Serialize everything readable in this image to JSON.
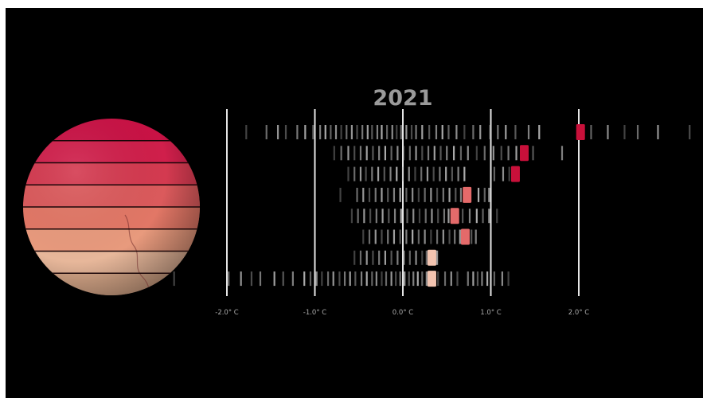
{
  "chart_data": {
    "type": "scatter",
    "title": "2021",
    "x_tick_labels": [
      "-2.0° C",
      "-1.0° C",
      "0.0° C",
      "1.0° C",
      "2.0° C"
    ],
    "x_ticks": [
      -2.0,
      -1.0,
      0.0,
      1.0,
      2.0
    ],
    "xlim": [
      -2.2,
      3.3
    ],
    "grid": true,
    "rows": 8,
    "colors": {
      "background": "#000000",
      "gridline": "#e6e6e6",
      "history_mark": "#bdbdbd",
      "highlight_hot": "#c8103a",
      "highlight_warm": "#e46a6a",
      "highlight_mild": "#f3c4b0",
      "globe_bands": [
        "#c91245",
        "#d01f4b",
        "#d43a50",
        "#db5a5c",
        "#e27766",
        "#e89a7d",
        "#e7b79a",
        "#d8a889"
      ]
    },
    "series": [
      {
        "highlight": 2.02,
        "history": [
          -1.78,
          -1.55,
          -1.42,
          -1.33,
          -1.2,
          -1.11,
          -1.02,
          -0.94,
          -0.88,
          -0.82,
          -0.76,
          -0.7,
          -0.64,
          -0.58,
          -0.52,
          -0.46,
          -0.4,
          -0.35,
          -0.29,
          -0.24,
          -0.18,
          -0.12,
          -0.07,
          -0.02,
          0.04,
          0.1,
          0.15,
          0.22,
          0.3,
          0.38,
          0.45,
          0.52,
          0.61,
          0.7,
          0.8,
          0.88,
          0.99,
          1.08,
          1.17,
          1.28,
          1.43,
          1.55,
          2.14,
          2.33,
          2.52,
          2.67,
          2.9,
          3.26
        ]
      },
      {
        "highlight": 1.38,
        "history": [
          -0.78,
          -0.7,
          -0.62,
          -0.55,
          -0.48,
          -0.41,
          -0.34,
          -0.27,
          -0.2,
          -0.13,
          -0.06,
          0.01,
          0.08,
          0.15,
          0.22,
          0.29,
          0.36,
          0.43,
          0.5,
          0.58,
          0.66,
          0.74,
          0.84,
          0.93,
          1.03,
          1.12,
          1.2,
          1.29,
          1.48,
          1.81
        ]
      },
      {
        "highlight": 1.28,
        "history": [
          -0.62,
          -0.55,
          -0.48,
          -0.42,
          -0.35,
          -0.28,
          -0.21,
          -0.14,
          -0.07,
          0.0,
          0.07,
          0.14,
          0.21,
          0.28,
          0.35,
          0.42,
          0.49,
          0.56,
          0.63,
          0.7,
          1.04,
          1.14,
          1.21
        ]
      },
      {
        "highlight": 0.73,
        "history": [
          -0.71,
          -0.52,
          -0.45,
          -0.38,
          -0.31,
          -0.24,
          -0.17,
          -0.1,
          -0.03,
          0.04,
          0.11,
          0.18,
          0.25,
          0.32,
          0.39,
          0.46,
          0.53,
          0.6,
          0.66,
          0.86,
          0.93,
          0.98
        ]
      },
      {
        "highlight": 0.59,
        "history": [
          -0.58,
          -0.51,
          -0.44,
          -0.37,
          -0.3,
          -0.23,
          -0.16,
          -0.09,
          -0.02,
          0.05,
          0.12,
          0.19,
          0.26,
          0.33,
          0.4,
          0.47,
          0.52,
          0.68,
          0.76,
          0.84,
          0.91,
          0.98,
          1.07
        ]
      },
      {
        "highlight": 0.71,
        "history": [
          -0.45,
          -0.38,
          -0.31,
          -0.24,
          -0.17,
          -0.1,
          -0.03,
          0.04,
          0.11,
          0.18,
          0.25,
          0.32,
          0.39,
          0.46,
          0.53,
          0.59,
          0.65,
          0.78,
          0.83
        ]
      },
      {
        "highlight": 0.33,
        "history": [
          -0.55,
          -0.48,
          -0.41,
          -0.34,
          -0.27,
          -0.2,
          -0.13,
          -0.06,
          0.01,
          0.08,
          0.15,
          0.22,
          0.27,
          0.39
        ]
      },
      {
        "highlight": 0.33,
        "history": [
          -2.6,
          -1.98,
          -1.84,
          -1.72,
          -1.62,
          -1.46,
          -1.36,
          -1.25,
          -1.12,
          -1.05,
          -0.98,
          -0.92,
          -0.85,
          -0.79,
          -0.72,
          -0.66,
          -0.6,
          -0.54,
          -0.47,
          -0.41,
          -0.35,
          -0.3,
          -0.24,
          -0.19,
          -0.13,
          -0.08,
          -0.03,
          0.02,
          0.07,
          0.12,
          0.17,
          0.22,
          0.27,
          0.4,
          0.48,
          0.55,
          0.62,
          0.74,
          0.8,
          0.85,
          0.9,
          0.96,
          1.04,
          1.13,
          1.2
        ]
      }
    ]
  }
}
